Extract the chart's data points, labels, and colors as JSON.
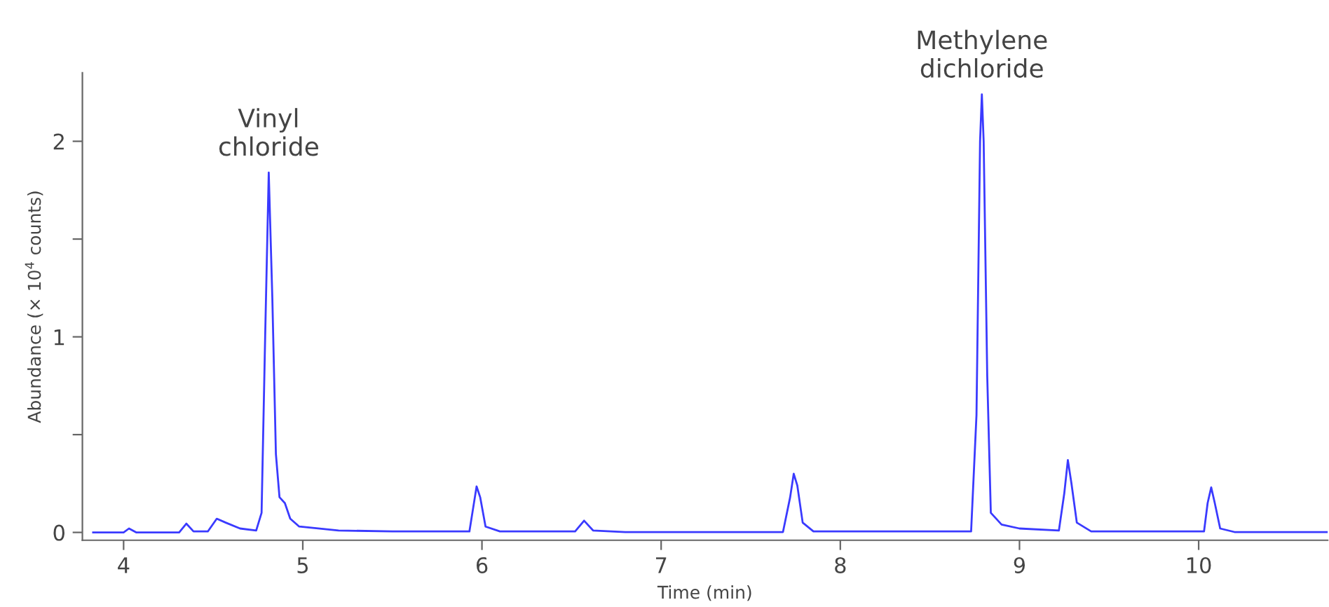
{
  "chart_data": {
    "type": "line",
    "xlabel": "Time (min)",
    "ylabel": "Abundance (× 10$^{4}$ counts)",
    "xlim": [
      3.77,
      10.72
    ],
    "xticks": [
      4,
      5,
      6,
      7,
      8,
      9,
      10
    ],
    "ylim": [
      -0.04,
      2.35
    ],
    "yticks": [
      0,
      {
        "value": 0.5,
        "label": null
      },
      1,
      {
        "value": 1.5,
        "label": null
      },
      2
    ],
    "grid": false,
    "legend": false,
    "marker": "none",
    "line_style": "solid",
    "annotations": [
      {
        "text": "Vinyl\nchloride",
        "x": 4.81,
        "y": 1.84
      },
      {
        "text": "Methylene\ndichloride",
        "x": 8.79,
        "y": 2.24
      }
    ],
    "series": [
      {
        "color": "#3a3aff",
        "x": [
          3.83,
          4.0,
          4.03,
          4.07,
          4.31,
          4.35,
          4.39,
          4.47,
          4.52,
          4.57,
          4.65,
          4.74,
          4.77,
          4.79,
          4.81,
          4.83,
          4.85,
          4.87,
          4.9,
          4.93,
          4.98,
          5.2,
          5.5,
          5.93,
          5.95,
          5.97,
          5.99,
          6.02,
          6.1,
          6.52,
          6.57,
          6.62,
          6.8,
          7.68,
          7.72,
          7.74,
          7.76,
          7.79,
          7.85,
          8.73,
          8.76,
          8.78,
          8.79,
          8.8,
          8.82,
          8.84,
          8.9,
          9.0,
          9.22,
          9.25,
          9.27,
          9.29,
          9.32,
          9.4,
          10.03,
          10.05,
          10.07,
          10.09,
          10.12,
          10.2,
          10.72
        ],
        "values": [
          0.0,
          0.0,
          0.02,
          0.0,
          0.0,
          0.045,
          0.005,
          0.005,
          0.07,
          0.05,
          0.02,
          0.01,
          0.1,
          1.0,
          1.84,
          1.2,
          0.4,
          0.18,
          0.15,
          0.07,
          0.03,
          0.01,
          0.005,
          0.005,
          0.12,
          0.235,
          0.18,
          0.03,
          0.005,
          0.005,
          0.06,
          0.01,
          0.002,
          0.002,
          0.18,
          0.3,
          0.24,
          0.05,
          0.005,
          0.005,
          0.6,
          2.0,
          2.24,
          2.0,
          0.8,
          0.1,
          0.04,
          0.02,
          0.01,
          0.2,
          0.37,
          0.25,
          0.05,
          0.005,
          0.005,
          0.15,
          0.23,
          0.15,
          0.02,
          0.002,
          0.002
        ]
      }
    ]
  }
}
